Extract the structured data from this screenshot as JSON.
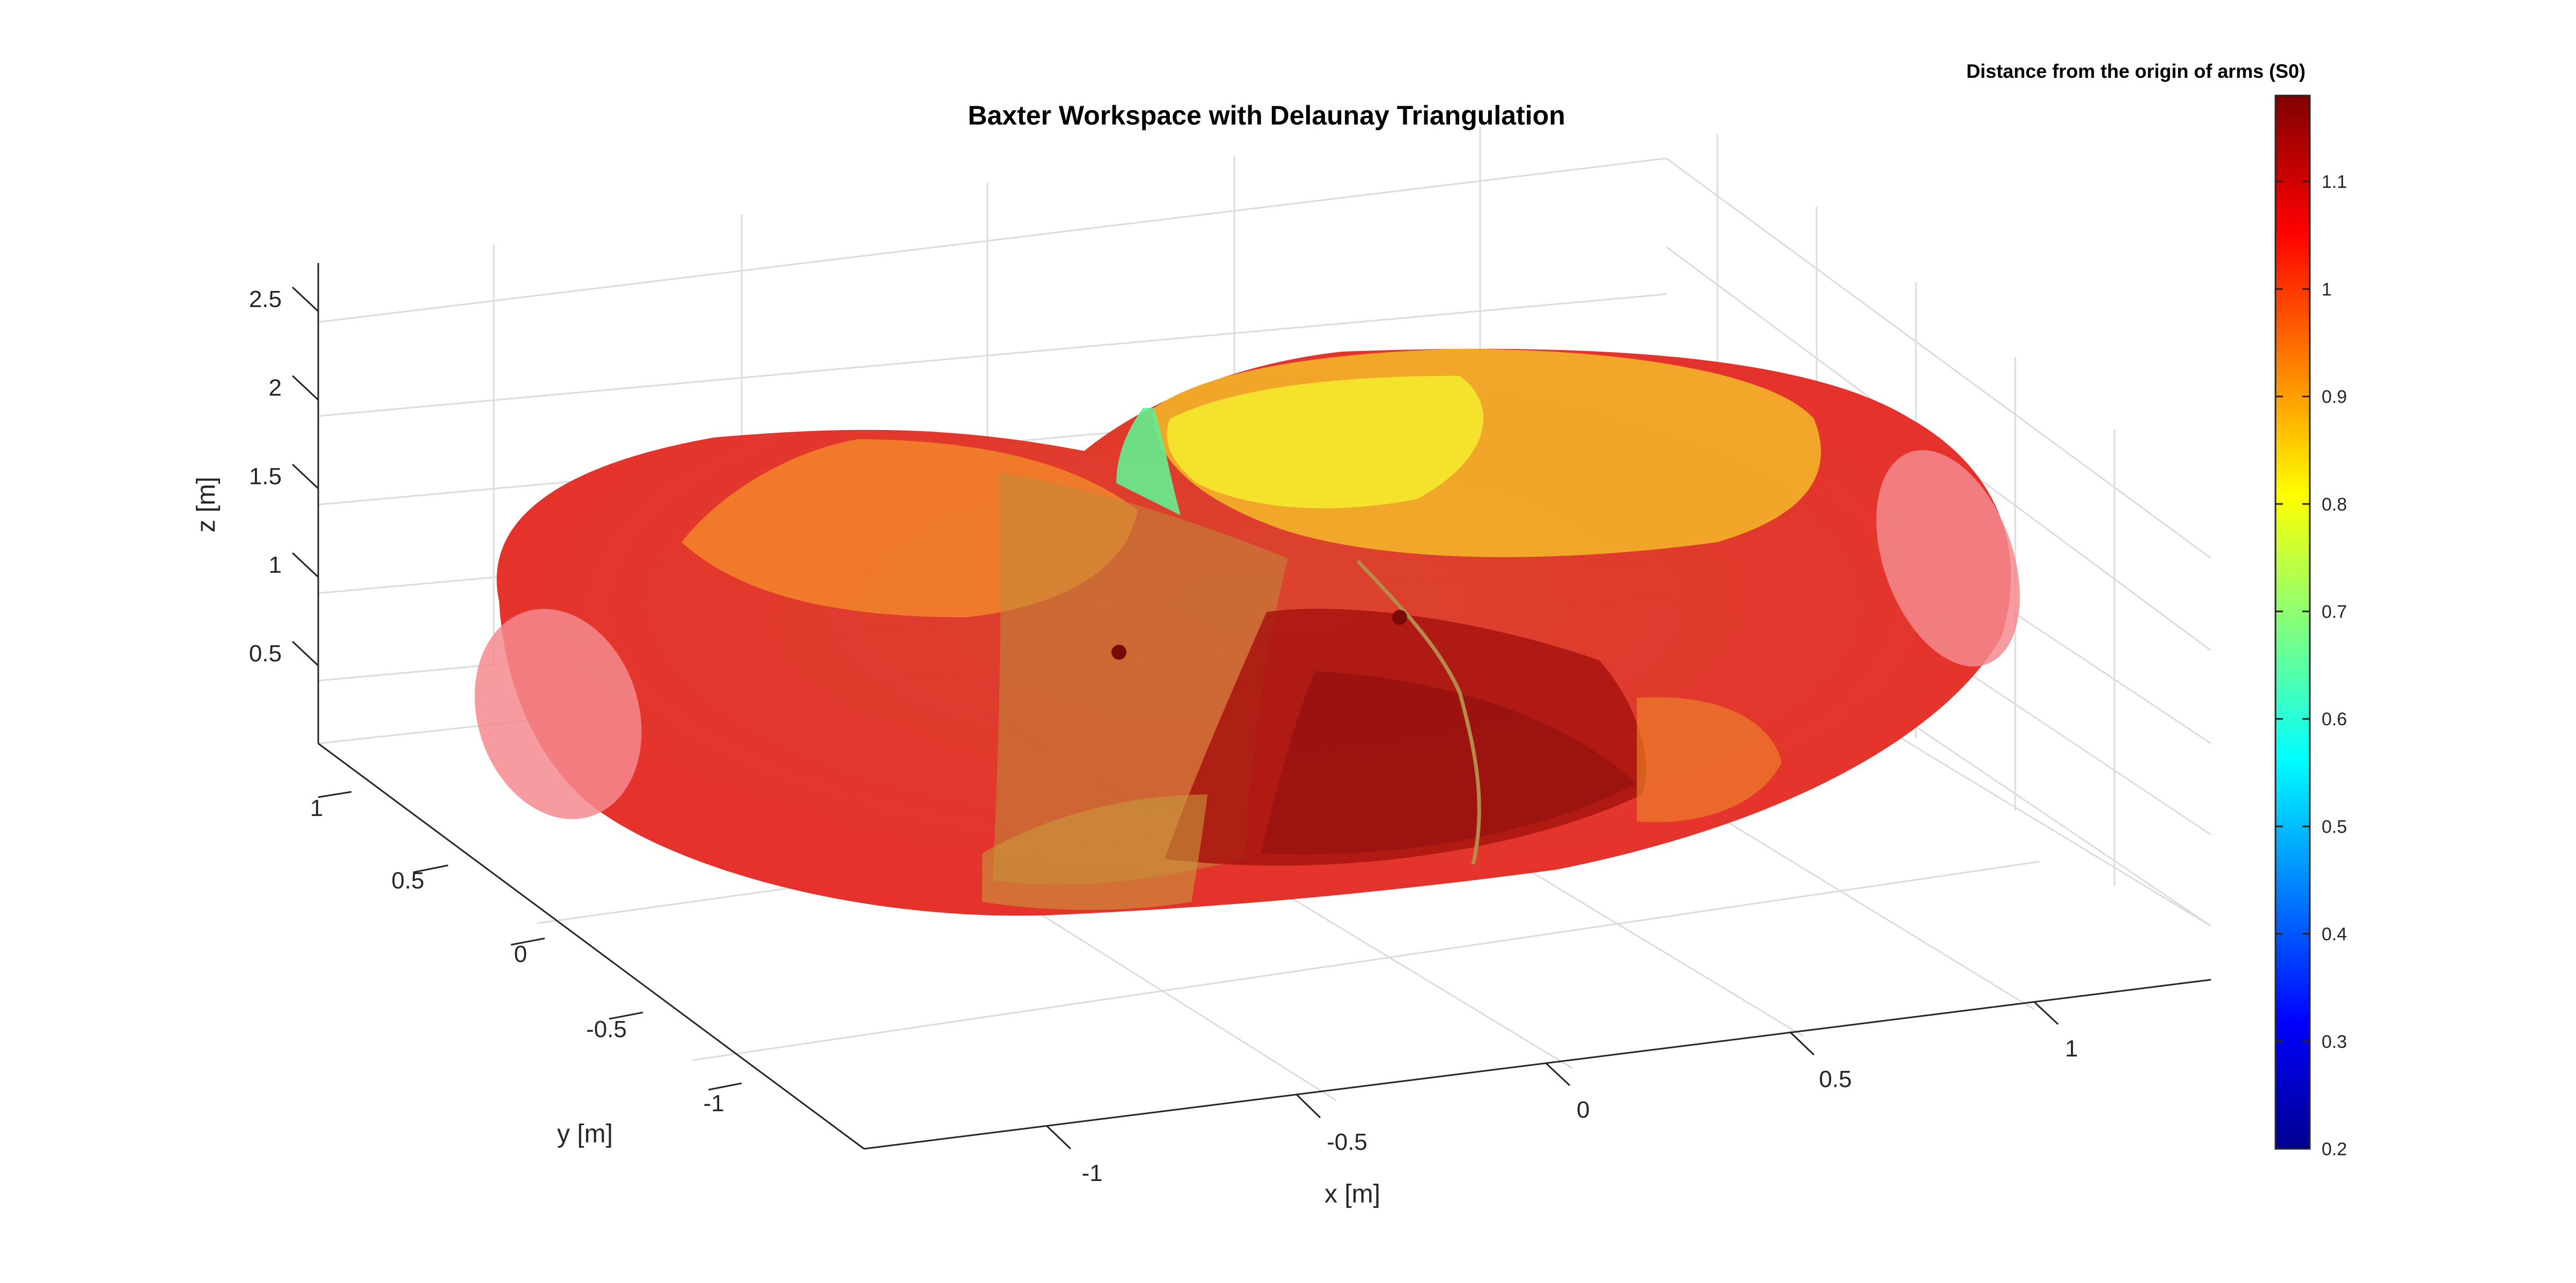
{
  "chart_data": {
    "type": "surface3d",
    "title": "Baxter Workspace with Delaunay Triangulation",
    "xlabel": "x [m]",
    "ylabel": "y [m]",
    "zlabel": "z [m]",
    "x_ticks": [
      "-1",
      "-0.5",
      "0",
      "0.5",
      "1"
    ],
    "y_ticks": [
      "1",
      "0.5",
      "0",
      "-0.5",
      "-1"
    ],
    "z_ticks": [
      "2.5",
      "2",
      "1.5",
      "1",
      "0.5"
    ],
    "grid": true,
    "surface": {
      "shape": "torus-like workspace (two overlapping arm workspaces)",
      "colormap": "jet",
      "transparency": true
    },
    "colorbar": {
      "title": "Distance from the origin of arms (S0)",
      "ticks": [
        "1.1",
        "1",
        "0.9",
        "0.8",
        "0.7",
        "0.6",
        "0.5",
        "0.4",
        "0.3",
        "0.2"
      ],
      "range": [
        0.2,
        1.18
      ],
      "placement": "right"
    },
    "colors": {
      "surface_main": "#e8231c",
      "surface_light": "#f0822b",
      "surface_yellow": "#f2e32a",
      "surface_green": "#5ef08c",
      "surface_dark": "#a4120f",
      "end_cap": "#f58a8e"
    }
  }
}
